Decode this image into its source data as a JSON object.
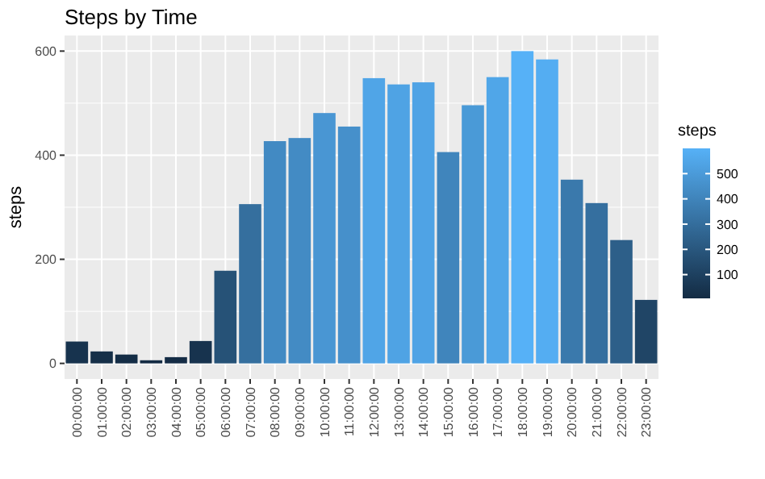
{
  "chart_data": {
    "type": "bar",
    "title": "Steps by Time",
    "ylabel": "steps",
    "clabel": "steps",
    "categories": [
      "00:00:00",
      "01:00:00",
      "02:00:00",
      "03:00:00",
      "04:00:00",
      "05:00:00",
      "06:00:00",
      "07:00:00",
      "08:00:00",
      "09:00:00",
      "10:00:00",
      "11:00:00",
      "12:00:00",
      "13:00:00",
      "14:00:00",
      "15:00:00",
      "16:00:00",
      "17:00:00",
      "18:00:00",
      "19:00:00",
      "20:00:00",
      "21:00:00",
      "22:00:00",
      "23:00:00"
    ],
    "values": [
      42,
      23,
      17,
      6,
      12,
      43,
      178,
      306,
      427,
      433,
      481,
      455,
      548,
      536,
      540,
      406,
      496,
      550,
      600,
      584,
      353,
      308,
      237,
      122
    ],
    "ylim": [
      -30,
      630
    ],
    "yticks": [
      0,
      200,
      400,
      600
    ],
    "clim": [
      6,
      600
    ],
    "cticks": [
      100,
      200,
      300,
      400,
      500
    ],
    "grid": true
  }
}
